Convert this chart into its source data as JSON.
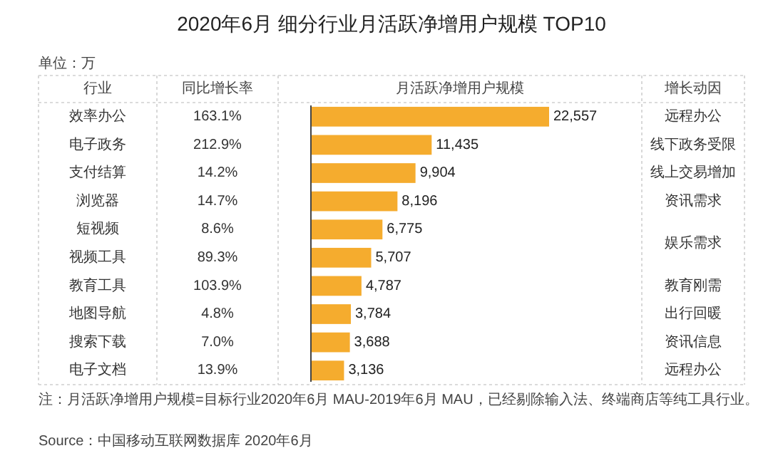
{
  "chart_data": {
    "type": "bar",
    "orientation": "horizontal",
    "title": "2020年6月 细分行业月活跃净增用户规模 TOP10",
    "categories": [
      "效率办公",
      "电子政务",
      "支付结算",
      "浏览器",
      "短视频",
      "视频工具",
      "教育工具",
      "地图导航",
      "搜索下载",
      "电子文档"
    ],
    "values": [
      22557,
      11435,
      9904,
      8196,
      6775,
      5707,
      4787,
      3784,
      3688,
      3136
    ],
    "color": "#f5ac2e",
    "value_labels": [
      "22,557",
      "11,435",
      "9,904",
      "8,196",
      "6,775",
      "5,707",
      "4,787",
      "3,784",
      "3,688",
      "3,136"
    ],
    "annotations": [
      "单位：万",
      "行业",
      "同比增长率",
      "月活跃净增用户规模",
      "增长动因",
      "注：月活跃净增用户规模=目标行业2020年6月 MAU-2019年6月 MAU，已经剔除输入法、终端商店等纯工具行业。",
      "Source：中国移动互联网数据库 2020年6月",
      "163.1%",
      "212.9%",
      "14.2%",
      "14.7%",
      "8.6%",
      "89.3%",
      "103.9%",
      "4.8%",
      "7.0%",
      "13.9%",
      "远程办公",
      "线下政务受限",
      "线上交易增加",
      "资讯需求",
      "娱乐需求",
      "教育刚需",
      "出行回暖",
      "资讯信息",
      "远程办公"
    ]
  }
}
